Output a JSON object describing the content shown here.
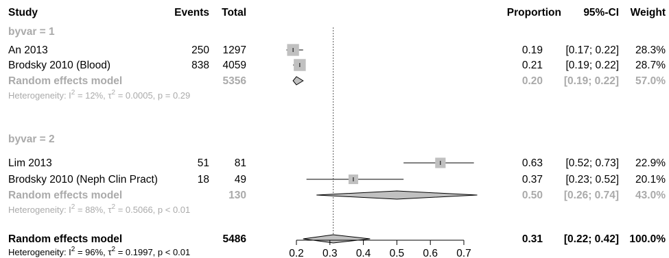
{
  "chart_data": {
    "type": "forest",
    "columns": {
      "study": "Study",
      "events": "Events",
      "total": "Total",
      "proportion": "Proportion",
      "ci": "95%-CI",
      "weight": "Weight"
    },
    "groups": [
      {
        "label": "byvar = 1",
        "studies": [
          {
            "name": "An 2013",
            "events": "250",
            "total": "1297",
            "proportion": 0.19,
            "lower": 0.17,
            "upper": 0.22,
            "weight_pct": 28.3,
            "prop_text": "0.19",
            "ci_text": "[0.17; 0.22]",
            "weight_text": "28.3%"
          },
          {
            "name": "Brodsky 2010 (Blood)",
            "events": "838",
            "total": "4059",
            "proportion": 0.21,
            "lower": 0.19,
            "upper": 0.22,
            "weight_pct": 28.7,
            "prop_text": "0.21",
            "ci_text": "[0.19; 0.22]",
            "weight_text": "28.7%"
          }
        ],
        "summary": {
          "label": "Random effects model",
          "total": "5356",
          "estimate": 0.2,
          "lower": 0.19,
          "upper": 0.22,
          "prop_text": "0.20",
          "ci_text": "[0.19; 0.22]",
          "weight_text": "57.0%"
        },
        "heterogeneity": {
          "prefix": "Heterogeneity: I",
          "i2": " = 12%, τ",
          "tau2": " = 0.0005, p = 0.29"
        }
      },
      {
        "label": "byvar = 2",
        "studies": [
          {
            "name": "Lim 2013",
            "events": "51",
            "total": "81",
            "proportion": 0.63,
            "lower": 0.52,
            "upper": 0.73,
            "weight_pct": 22.9,
            "prop_text": "0.63",
            "ci_text": "[0.52; 0.73]",
            "weight_text": "22.9%"
          },
          {
            "name": "Brodsky 2010 (Neph Clin Pract)",
            "events": "18",
            "total": "49",
            "proportion": 0.37,
            "lower": 0.23,
            "upper": 0.52,
            "weight_pct": 20.1,
            "prop_text": "0.37",
            "ci_text": "[0.23; 0.52]",
            "weight_text": "20.1%"
          }
        ],
        "summary": {
          "label": "Random effects model",
          "total": "130",
          "estimate": 0.5,
          "lower": 0.26,
          "upper": 0.74,
          "prop_text": "0.50",
          "ci_text": "[0.26; 0.74]",
          "weight_text": "43.0%"
        },
        "heterogeneity": {
          "prefix": "Heterogeneity: I",
          "i2": " = 88%, τ",
          "tau2": " = 0.5066, p < 0.01"
        }
      }
    ],
    "overall": {
      "label": "Random effects model",
      "total": "5486",
      "estimate": 0.31,
      "lower": 0.22,
      "upper": 0.42,
      "prop_text": "0.31",
      "ci_text": "[0.22; 0.42]",
      "weight_text": "100.0%",
      "heterogeneity": {
        "prefix": "Heterogeneity: I",
        "i2": " = 96%, τ",
        "tau2": " = 0.1997, p < 0.01"
      }
    },
    "axis": {
      "xlim": [
        0.2,
        0.7
      ],
      "ticks": [
        0.2,
        0.3,
        0.4,
        0.5,
        0.6,
        0.7
      ],
      "tick_labels": [
        "0.2",
        "0.3",
        "0.4",
        "0.5",
        "0.6",
        "0.7"
      ],
      "reference_line": 0.31,
      "visible_min": 0.17,
      "visible_max": 0.74
    },
    "colors": {
      "text": "#000000",
      "subgroup_text": "#aaaaaa",
      "square": "#c0c0c0",
      "diamond": "#c0c0c0",
      "line": "#000000"
    }
  }
}
